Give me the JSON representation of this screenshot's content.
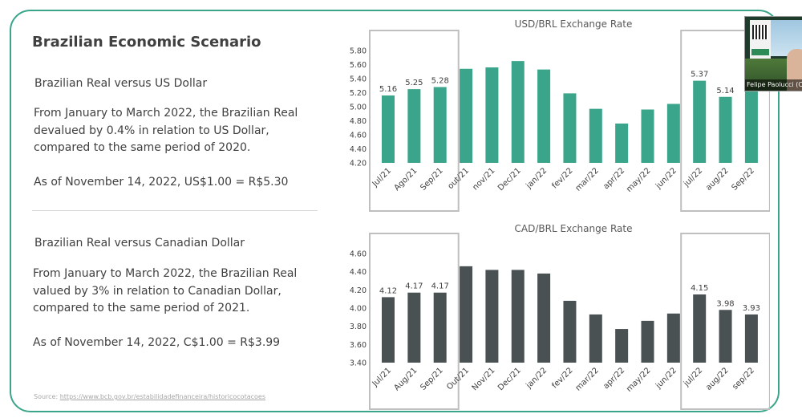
{
  "left": {
    "title": "Brazilian Economic Scenario",
    "usd_heading": "Brazilian Real versus US Dollar",
    "usd_text": "From January to March 2022, the Brazilian Real devalued by 0.4% in relation to US Dollar, compared to the same period of 2020.",
    "usd_rate": "As of November 14, 2022, US$1.00 = R$5.30",
    "cad_heading": "Brazilian Real versus Canadian Dollar",
    "cad_text": "From January to March 2022, the Brazilian Real valued by 3% in relation to Canadian Dollar, compared  to the same period of 2021.",
    "cad_rate": "As of November 14, 2022, C$1.00 = R$3.99",
    "source_prefix": "Source: ",
    "source_link": "https://www.bcb.gov.br/estabilidadefinanceira/historicocotacoes"
  },
  "webcam": {
    "name": "Felipe Paolucci (C..."
  },
  "chart_data": [
    {
      "type": "bar",
      "title": "USD/BRL Exchange Rate",
      "categories": [
        "Jul/21",
        "Ago/21",
        "Sep/21",
        "out/21",
        "nov/21",
        "Dec/21",
        "jan/22",
        "fev/22",
        "mar/22",
        "apr/22",
        "may/22",
        "jun/22",
        "jul/22",
        "aug/22",
        "Sep/22"
      ],
      "values": [
        5.16,
        5.25,
        5.28,
        5.54,
        5.56,
        5.65,
        5.53,
        5.19,
        4.97,
        4.76,
        4.96,
        5.04,
        5.37,
        5.14,
        5.24
      ],
      "data_labels": [
        "5.16",
        "5.25",
        "5.28",
        "",
        "",
        "",
        "",
        "",
        "",
        "",
        "",
        "",
        "5.37",
        "5.14",
        ""
      ],
      "highlighted": [
        0,
        1,
        2,
        12,
        13,
        14
      ],
      "yticks": [
        "4.20",
        "4.40",
        "4.60",
        "4.80",
        "5.00",
        "5.20",
        "5.40",
        "5.60",
        "5.80"
      ],
      "ylim": [
        4.2,
        5.8
      ],
      "color": "#3aa58a"
    },
    {
      "type": "bar",
      "title": "CAD/BRL Exchange Rate",
      "categories": [
        "Jul/21",
        "Aug/21",
        "Sep/21",
        "Out/21",
        "Nov/21",
        "Dec/21",
        "jan/22",
        "fev/22",
        "mar/22",
        "apr/22",
        "may/22",
        "jun/22",
        "jul/22",
        "aug/22",
        "sep/22"
      ],
      "values": [
        4.12,
        4.17,
        4.17,
        4.46,
        4.42,
        4.42,
        4.38,
        4.08,
        3.93,
        3.77,
        3.86,
        3.94,
        4.15,
        3.98,
        3.93
      ],
      "data_labels": [
        "4.12",
        "4.17",
        "4.17",
        "",
        "",
        "",
        "",
        "",
        "",
        "",
        "",
        "",
        "4.15",
        "3.98",
        "3.93"
      ],
      "highlighted": [
        0,
        1,
        2,
        12,
        13,
        14
      ],
      "yticks": [
        "3.40",
        "3.60",
        "3.80",
        "4.00",
        "4.20",
        "4.40",
        "4.60"
      ],
      "ylim": [
        3.4,
        4.6
      ],
      "color": "#495153"
    }
  ]
}
